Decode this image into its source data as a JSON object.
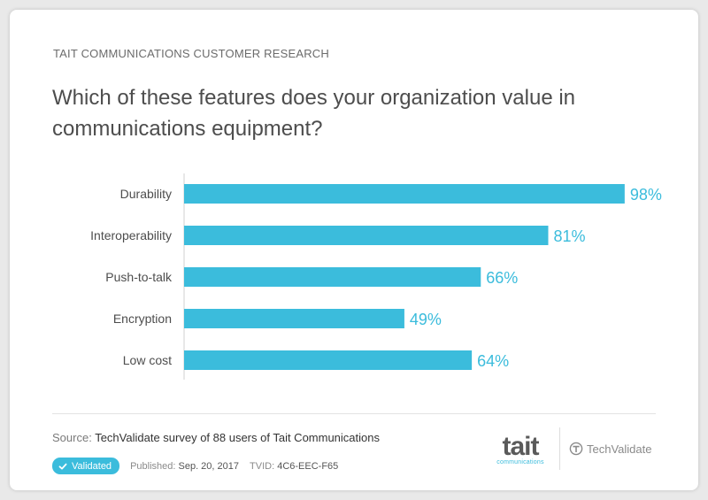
{
  "header": {
    "kicker": "TAIT COMMUNICATIONS CUSTOMER RESEARCH",
    "question": "Which of these features does your organization value in communications equipment?"
  },
  "chart_data": {
    "type": "bar",
    "orientation": "horizontal",
    "categories": [
      "Durability",
      "Interoperability",
      "Push-to-talk",
      "Encryption",
      "Low cost"
    ],
    "values": [
      98,
      81,
      66,
      49,
      64
    ],
    "value_labels": [
      "98%",
      "81%",
      "66%",
      "49%",
      "64%"
    ],
    "xlim": [
      0,
      100
    ],
    "grid": false,
    "bar_color": "#3bbcdc",
    "label_color": "#3bbcdc"
  },
  "footer": {
    "source_label": "Source:",
    "source_text": "TechValidate survey of 88 users of Tait Communications",
    "badge_label": "Validated",
    "published_label": "Published:",
    "published_value": "Sep. 20, 2017",
    "tvid_label": "TVID:",
    "tvid_value": "4C6-EEC-F65",
    "tait_logo_word": "tait",
    "tait_logo_sub": "communications",
    "techvalidate_logo": "TechValidate",
    "icons": [
      "check-icon",
      "techvalidate-icon"
    ]
  },
  "colors": {
    "accent": "#3bbcdc",
    "text_dark": "#4d4d4d",
    "text_muted": "#7a7a7a"
  }
}
